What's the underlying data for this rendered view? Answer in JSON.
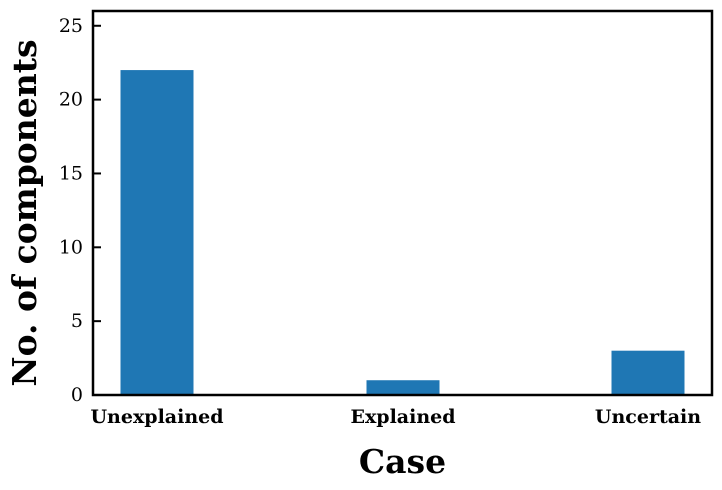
{
  "chart_data": {
    "type": "bar",
    "title": "",
    "xlabel": "Case",
    "ylabel": "No. of components",
    "categories": [
      "Unexplained",
      "Explained",
      "Uncertain"
    ],
    "values": [
      22,
      1,
      3
    ],
    "ylim": [
      0,
      26
    ],
    "yticks": [
      0,
      5,
      10,
      15,
      20,
      25
    ],
    "grid": false,
    "legend": "none",
    "bar_color": "#1f77b4"
  }
}
